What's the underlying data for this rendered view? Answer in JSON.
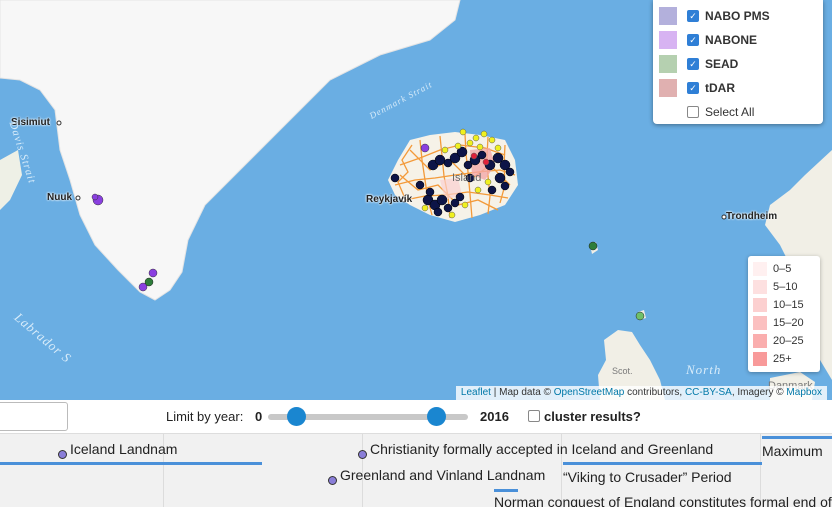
{
  "map": {
    "city_labels": {
      "sisimiut": "Sisimiut",
      "nuuk": "Nuuk",
      "reykjavik": "Reykjavík",
      "trondheim": "Trondheim",
      "iceland": "Island"
    },
    "water_labels": {
      "davis_strait": "Davis Strait",
      "denmark_strait": "Denmark Strait",
      "labrador_sea": "Labrador S",
      "north_sea": "North"
    },
    "land_labels": {
      "scotland": "Scot.",
      "denmark": "Danmark"
    },
    "colors": {
      "ocean": "#6aaee3",
      "land": "#f3efe6",
      "greenland": "#f7f7f7",
      "site_dark": "#0d1447",
      "site_yellow": "#f0f020",
      "site_purple": "#8a3fe0",
      "site_green": "#2e7d3a",
      "boundary": "#f39a3a"
    }
  },
  "layers": {
    "items": [
      {
        "label": "NABO PMS",
        "color": "#b3b0dc",
        "checked": true
      },
      {
        "label": "NABONE",
        "color": "#d7b3f2",
        "checked": true
      },
      {
        "label": "SEAD",
        "color": "#b5d0b0",
        "checked": true
      },
      {
        "label": "tDAR",
        "color": "#e0b0b0",
        "checked": true
      }
    ],
    "select_all": "Select All"
  },
  "density_legend": [
    {
      "label": "0–5",
      "color": "#fff0f0"
    },
    {
      "label": "5–10",
      "color": "#fde0e0"
    },
    {
      "label": "10–15",
      "color": "#fcd0d0"
    },
    {
      "label": "15–20",
      "color": "#fbc0c0"
    },
    {
      "label": "20–25",
      "color": "#faaeae"
    },
    {
      "label": "25+",
      "color": "#f89a9a"
    }
  ],
  "attribution": {
    "leaflet": "Leaflet",
    "sep1": " | Map data © ",
    "osm": "OpenStreetMap",
    "sep2": " contributors, ",
    "license": "CC-BY-SA",
    "sep3": ", Imagery © ",
    "mapbox": "Mapbox"
  },
  "controls": {
    "limit_label": "Limit by year:",
    "year_min": "0",
    "year_max": "2016",
    "cluster_label": "cluster results?"
  },
  "timeline": {
    "events": [
      {
        "label": "Iceland Landnam"
      },
      {
        "label": "Christianity formally accepted in Iceland and Greenland"
      },
      {
        "label": "Greenland and Vinland Landnam"
      },
      {
        "label": "“Viking to Crusader” Period"
      },
      {
        "label": "Maximum"
      },
      {
        "label": "Norman conquest of England constitutes formal end of"
      }
    ]
  }
}
